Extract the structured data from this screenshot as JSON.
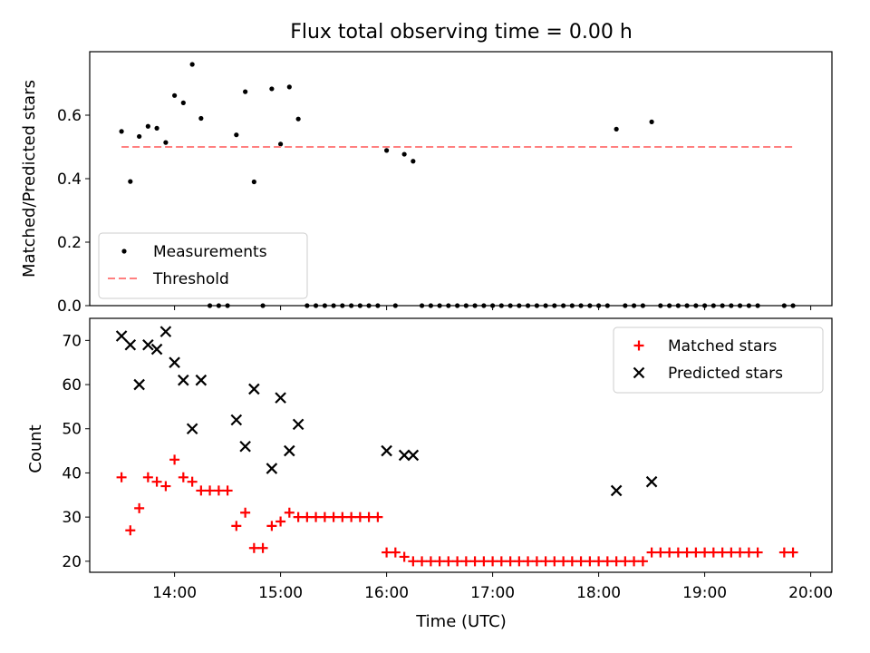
{
  "chart_data": [
    {
      "type": "scatter",
      "title": "Flux total observing time = 0.00 h",
      "xlabel": "",
      "ylabel": "Matched/Predicted stars",
      "xlim": [
        13.2,
        20.2
      ],
      "ylim": [
        0,
        0.8
      ],
      "yticks": [
        0.0,
        0.2,
        0.4,
        0.6
      ],
      "ytick_labels": [
        "0.0",
        "0.2",
        "0.4",
        "0.6"
      ],
      "xticks": [
        14,
        15,
        16,
        17,
        18,
        19,
        20
      ],
      "legend_position": "lower-left",
      "series": [
        {
          "name": "Measurements",
          "color": "#000000",
          "marker": "dot",
          "x": [
            13.5,
            13.583,
            13.667,
            13.75,
            13.833,
            13.917,
            14.0,
            14.083,
            14.167,
            14.25,
            14.333,
            14.417,
            14.5,
            14.583,
            14.667,
            14.75,
            14.833,
            14.917,
            15.0,
            15.083,
            15.167,
            15.25,
            15.333,
            15.417,
            15.5,
            15.583,
            15.667,
            15.75,
            15.833,
            15.917,
            16.0,
            16.083,
            16.167,
            16.25,
            16.333,
            16.417,
            16.5,
            16.583,
            16.667,
            16.75,
            16.833,
            16.917,
            17.0,
            17.083,
            17.167,
            17.25,
            17.333,
            17.417,
            17.5,
            17.583,
            17.667,
            17.75,
            17.833,
            17.917,
            18.0,
            18.083,
            18.167,
            18.25,
            18.333,
            18.417,
            18.5,
            18.583,
            18.667,
            18.75,
            18.833,
            18.917,
            19.0,
            19.083,
            19.167,
            19.25,
            19.333,
            19.417,
            19.5,
            19.75,
            19.833
          ],
          "y": [
            0.549,
            0.391,
            0.533,
            0.565,
            0.559,
            0.514,
            0.662,
            0.639,
            0.76,
            0.59,
            0.0,
            0.0,
            0.0,
            0.538,
            0.674,
            0.39,
            0.0,
            0.683,
            0.509,
            0.689,
            0.588,
            0.0,
            0.0,
            0.0,
            0.0,
            0.0,
            0.0,
            0.0,
            0.0,
            0.0,
            0.489,
            0.0,
            0.477,
            0.455,
            0.0,
            0.0,
            0.0,
            0.0,
            0.0,
            0.0,
            0.0,
            0.0,
            0.0,
            0.0,
            0.0,
            0.0,
            0.0,
            0.0,
            0.0,
            0.0,
            0.0,
            0.0,
            0.0,
            0.0,
            0.0,
            0.0,
            0.556,
            0.0,
            0.0,
            0.0,
            0.579,
            0.0,
            0.0,
            0.0,
            0.0,
            0.0,
            0.0,
            0.0,
            0.0,
            0.0,
            0.0,
            0.0,
            0.0,
            0.0,
            0.0
          ]
        },
        {
          "name": "Threshold",
          "color": "#ff7f7f",
          "style": "dashed",
          "x": [
            13.5,
            19.833
          ],
          "y": [
            0.5,
            0.5
          ]
        }
      ]
    },
    {
      "type": "scatter",
      "title": "",
      "xlabel": "Time (UTC)",
      "ylabel": "Count",
      "xlim": [
        13.2,
        20.2
      ],
      "ylim": [
        17.5,
        75
      ],
      "yticks": [
        20,
        30,
        40,
        50,
        60,
        70
      ],
      "ytick_labels": [
        "20",
        "30",
        "40",
        "50",
        "60",
        "70"
      ],
      "xticks": [
        14,
        15,
        16,
        17,
        18,
        19,
        20
      ],
      "xtick_labels": [
        "14:00",
        "15:00",
        "16:00",
        "17:00",
        "18:00",
        "19:00",
        "20:00"
      ],
      "legend_position": "top-right",
      "series": [
        {
          "name": "Matched stars",
          "color": "#ff0000",
          "marker": "plus",
          "x": [
            13.5,
            13.583,
            13.667,
            13.75,
            13.833,
            13.917,
            14.0,
            14.083,
            14.167,
            14.25,
            14.333,
            14.417,
            14.5,
            14.583,
            14.667,
            14.75,
            14.833,
            14.917,
            15.0,
            15.083,
            15.167,
            15.25,
            15.333,
            15.417,
            15.5,
            15.583,
            15.667,
            15.75,
            15.833,
            15.917,
            16.0,
            16.083,
            16.167,
            16.25,
            16.333,
            16.417,
            16.5,
            16.583,
            16.667,
            16.75,
            16.833,
            16.917,
            17.0,
            17.083,
            17.167,
            17.25,
            17.333,
            17.417,
            17.5,
            17.583,
            17.667,
            17.75,
            17.833,
            17.917,
            18.0,
            18.083,
            18.167,
            18.25,
            18.333,
            18.417,
            18.5,
            18.583,
            18.667,
            18.75,
            18.833,
            18.917,
            19.0,
            19.083,
            19.167,
            19.25,
            19.333,
            19.417,
            19.5,
            19.75,
            19.833
          ],
          "y": [
            39,
            27,
            32,
            39,
            38,
            37,
            43,
            39,
            38,
            36,
            36,
            36,
            36,
            28,
            31,
            23,
            23,
            28,
            29,
            31,
            30,
            30,
            30,
            30,
            30,
            30,
            30,
            30,
            30,
            30,
            22,
            22,
            21,
            20,
            20,
            20,
            20,
            20,
            20,
            20,
            20,
            20,
            20,
            20,
            20,
            20,
            20,
            20,
            20,
            20,
            20,
            20,
            20,
            20,
            20,
            20,
            20,
            20,
            20,
            20,
            22,
            22,
            22,
            22,
            22,
            22,
            22,
            22,
            22,
            22,
            22,
            22,
            22,
            22,
            22
          ]
        },
        {
          "name": "Predicted stars",
          "color": "#000000",
          "marker": "x",
          "x": [
            13.5,
            13.583,
            13.667,
            13.75,
            13.833,
            13.917,
            14.0,
            14.083,
            14.167,
            14.25,
            14.583,
            14.667,
            14.75,
            14.917,
            15.0,
            15.083,
            15.167,
            16.0,
            16.167,
            16.25,
            18.167,
            18.5
          ],
          "y": [
            71,
            69,
            60,
            69,
            68,
            72,
            65,
            61,
            50,
            61,
            52,
            46,
            59,
            41,
            57,
            45,
            51,
            45,
            44,
            44,
            36,
            38
          ]
        }
      ]
    }
  ]
}
